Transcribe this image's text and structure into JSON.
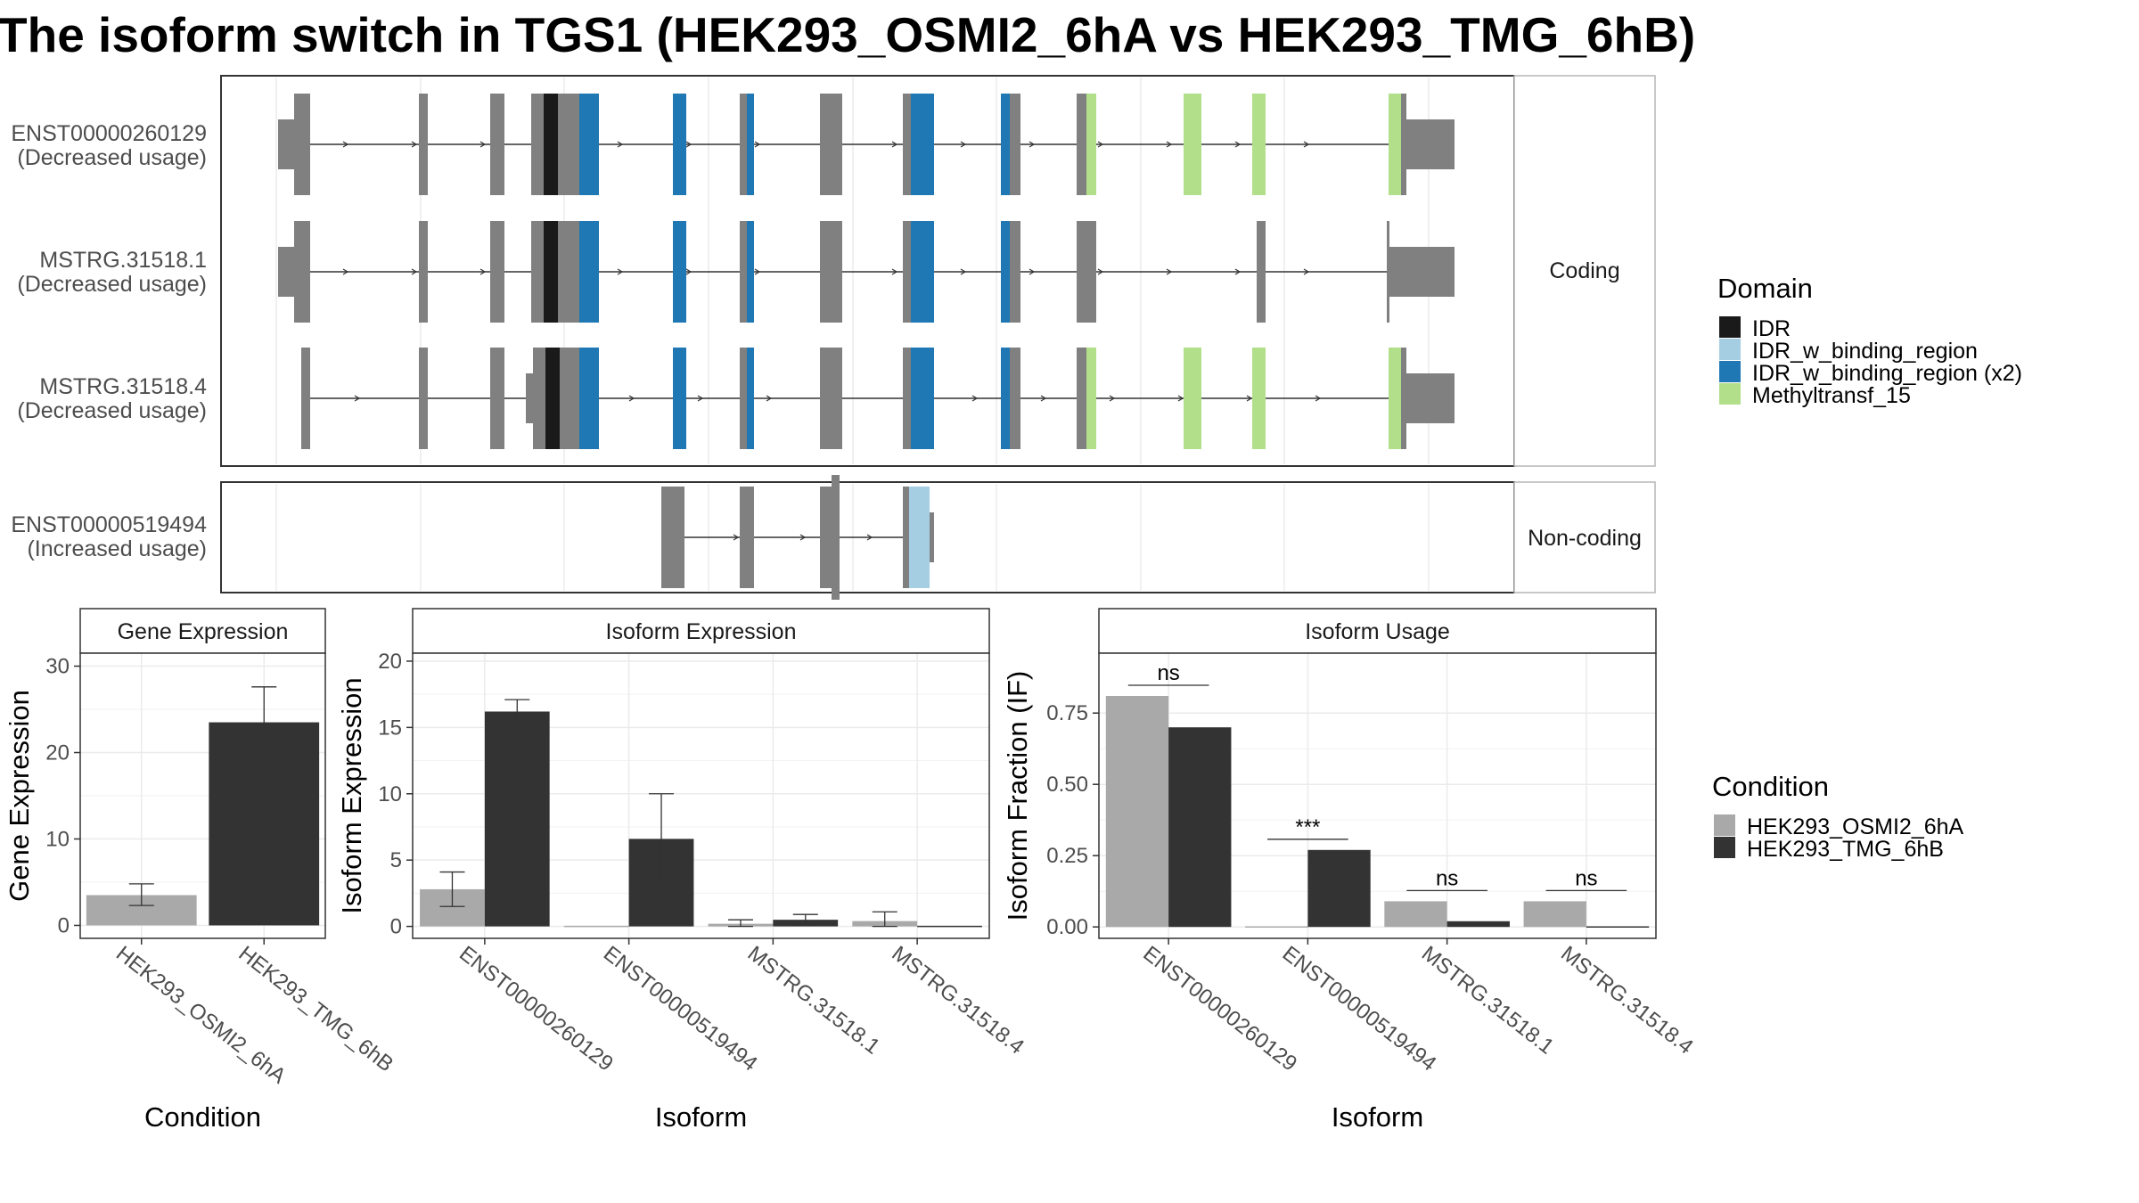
{
  "title": "The isoform switch in TGS1 (HEK293_OSMI2_6hA vs HEK293_TMG_6hB)",
  "colors": {
    "cond_a": "#a9a9a9",
    "cond_b": "#333333",
    "intron_grey": "#808080",
    "domain_IDR": "#1a1a1a",
    "domain_IDR_w_binding_region": "#a6cee3",
    "domain_IDR_w_binding_region_x2": "#1f78b4",
    "domain_Methyltransf_15": "#b2df8a"
  },
  "structure": {
    "coding_label": "Coding",
    "noncoding_label": "Non-coding",
    "transcripts": [
      {
        "id": "ENST00000260129",
        "usage": "(Decreased usage)",
        "group": "coding"
      },
      {
        "id": "MSTRG.31518.1",
        "usage": "(Decreased usage)",
        "group": "coding"
      },
      {
        "id": "MSTRG.31518.4",
        "usage": "(Decreased usage)",
        "group": "coding"
      },
      {
        "id": "ENST00000519494",
        "usage": "(Increased usage)",
        "group": "noncoding"
      }
    ]
  },
  "domain_legend": {
    "title": "Domain",
    "items": [
      {
        "label": "IDR",
        "color": "#1a1a1a"
      },
      {
        "label": "IDR_w_binding_region",
        "color": "#a6cee3"
      },
      {
        "label": "IDR_w_binding_region (x2)",
        "color": "#1f78b4"
      },
      {
        "label": "Methyltransf_15",
        "color": "#b2df8a"
      }
    ]
  },
  "condition_legend": {
    "title": "Condition",
    "items": [
      {
        "label": "HEK293_OSMI2_6hA",
        "color": "#a9a9a9"
      },
      {
        "label": "HEK293_TMG_6hB",
        "color": "#333333"
      }
    ]
  },
  "chart_data": [
    {
      "type": "bar",
      "title": "Gene Expression",
      "xlabel": "Condition",
      "ylabel": "Gene Expression",
      "categories": [
        "HEK293_OSMI2_6hA",
        "HEK293_TMG_6hB"
      ],
      "values": [
        3.5,
        23.5
      ],
      "err_low": [
        2.3,
        19.4
      ],
      "err_high": [
        4.8,
        27.6
      ],
      "ylim": [
        -1.5,
        31.5
      ],
      "yticks": [
        0,
        10,
        20,
        30
      ]
    },
    {
      "type": "bar",
      "title": "Isoform Expression",
      "xlabel": "Isoform",
      "ylabel": "Isoform Expression",
      "categories": [
        "ENST00000260129",
        "ENST00000519494",
        "MSTRG.31518.1",
        "MSTRG.31518.4"
      ],
      "series": [
        {
          "name": "HEK293_OSMI2_6hA",
          "values": [
            2.8,
            0.0,
            0.2,
            0.4
          ],
          "err_low": [
            1.5,
            0.0,
            0.0,
            0.0
          ],
          "err_high": [
            4.1,
            0.0,
            0.5,
            1.1
          ]
        },
        {
          "name": "HEK293_TMG_6hB",
          "values": [
            16.2,
            6.6,
            0.5,
            0.0
          ],
          "err_low": [
            15.4,
            3.3,
            0.1,
            0.0
          ],
          "err_high": [
            17.1,
            10.0,
            0.9,
            0.0
          ]
        }
      ],
      "ylim": [
        -0.9,
        20.6
      ],
      "yticks": [
        0,
        5,
        10,
        15,
        20
      ]
    },
    {
      "type": "bar",
      "title": "Isoform Usage",
      "xlabel": "Isoform",
      "ylabel": "Isoform Fraction (IF)",
      "categories": [
        "ENST00000260129",
        "ENST00000519494",
        "MSTRG.31518.1",
        "MSTRG.31518.4"
      ],
      "series": [
        {
          "name": "HEK293_OSMI2_6hA",
          "values": [
            0.81,
            0.0,
            0.09,
            0.09
          ]
        },
        {
          "name": "HEK293_TMG_6hB",
          "values": [
            0.7,
            0.27,
            0.02,
            0.0
          ]
        }
      ],
      "significance": [
        "ns",
        "***",
        "ns",
        "ns"
      ],
      "ylim": [
        -0.04,
        0.96
      ],
      "yticks": [
        0.0,
        0.25,
        0.5,
        0.75
      ],
      "ytick_labels": [
        "0.00",
        "0.25",
        "0.50",
        "0.75"
      ]
    }
  ]
}
